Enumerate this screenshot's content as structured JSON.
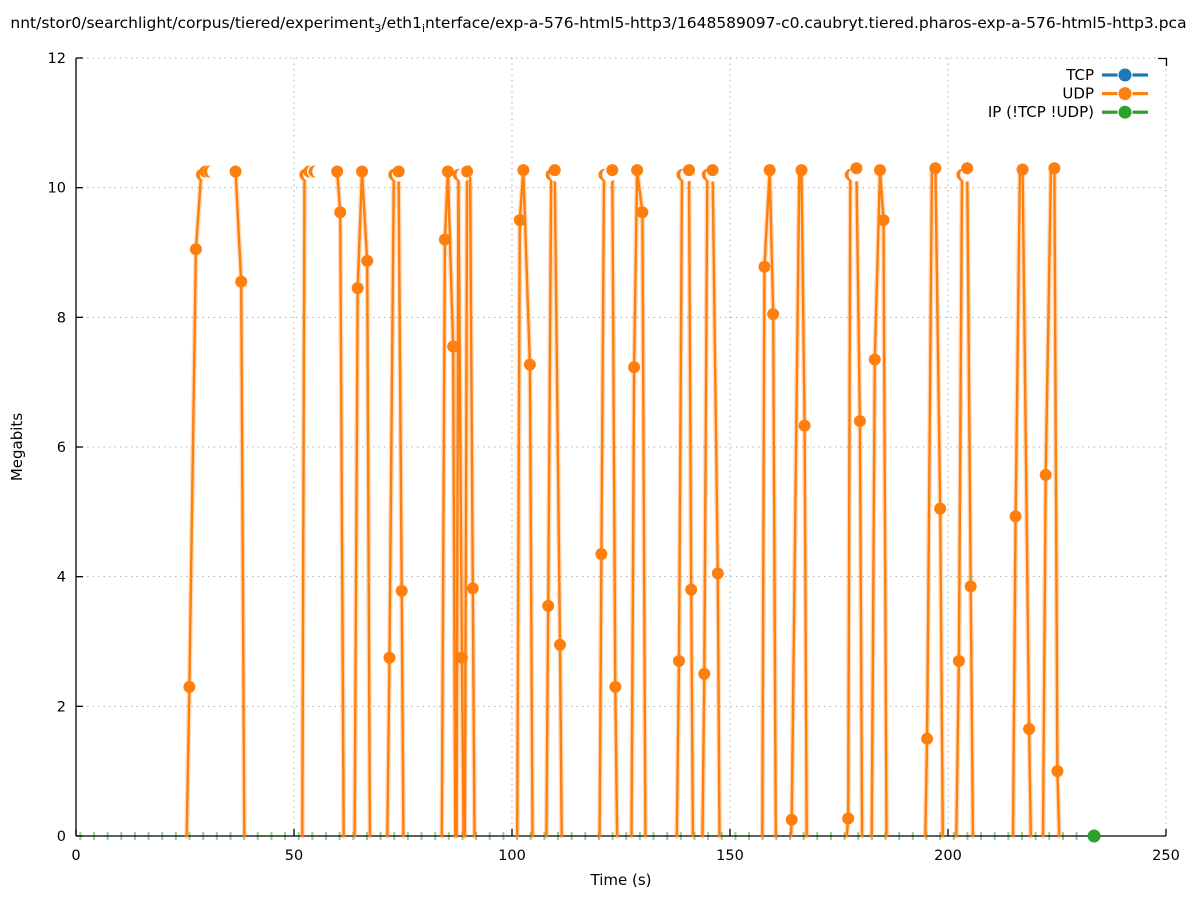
{
  "title": {
    "parts": [
      {
        "text": "nnt/stor0/searchlight/corpus/tiered/experiment"
      },
      {
        "text": "3",
        "sub": true
      },
      {
        "text": "/eth1"
      },
      {
        "text": "i",
        "sub": true
      },
      {
        "text": "nterface/exp-a-576-html5-http3/1648589097-c0.caubryt.tiered.pharos-exp-a-576-html5-http3.pca"
      }
    ]
  },
  "chart_data": {
    "type": "line",
    "xlabel": "Time (s)",
    "ylabel": "Megabits",
    "xlim": [
      0,
      250
    ],
    "ylim": [
      0,
      12
    ],
    "xticks": [
      0,
      50,
      100,
      150,
      200,
      250
    ],
    "yticks": [
      0,
      2,
      4,
      6,
      8,
      10,
      12
    ],
    "grid": true,
    "grid_color": "#b0b0b0",
    "legend_position": "top-right",
    "series": [
      {
        "name": "TCP",
        "color": "#1f77b4",
        "style": "linespoints",
        "points": []
      },
      {
        "name": "UDP",
        "color": "#ff7f0e",
        "style": "linespoints",
        "plateau_value": 10.25,
        "bursts": [
          [
            [
              25.4,
              0
            ],
            [
              26,
              2.3
            ],
            [
              27.5,
              9.05
            ],
            [
              28.7,
              10.2
            ]
          ],
          [
            [
              36.6,
              10.25
            ],
            [
              37.9,
              8.55
            ],
            [
              38.6,
              0
            ]
          ],
          [
            [
              51.9,
              0
            ],
            [
              52.4,
              10.2
            ]
          ],
          [
            [
              59.9,
              10.25
            ],
            [
              60.6,
              9.62
            ],
            [
              61.4,
              0
            ]
          ],
          [
            [
              63.9,
              0
            ],
            [
              64.6,
              8.45
            ],
            [
              65.6,
              10.25
            ],
            [
              66.8,
              8.87
            ],
            [
              67.4,
              0
            ]
          ],
          [
            [
              71.4,
              0
            ],
            [
              71.9,
              2.75
            ],
            [
              72.9,
              10.2
            ]
          ],
          [
            [
              74,
              10.25
            ],
            [
              74.7,
              3.78
            ],
            [
              75.1,
              0
            ]
          ],
          [
            [
              83.9,
              0
            ],
            [
              84.6,
              9.2
            ],
            [
              85.3,
              10.25
            ],
            [
              86.5,
              7.55
            ],
            [
              87,
              0
            ]
          ],
          [
            [
              87.3,
              0
            ],
            [
              87.7,
              10.2
            ],
            [
              88.5,
              2.75
            ],
            [
              88.9,
              0
            ]
          ],
          [
            [
              89.2,
              0
            ],
            [
              89.7,
              10.25
            ],
            [
              90.4,
              10.25
            ],
            [
              91,
              3.82
            ],
            [
              91.4,
              0
            ]
          ],
          [
            [
              101.2,
              0
            ],
            [
              101.8,
              9.5
            ],
            [
              102.6,
              10.27
            ],
            [
              104.1,
              7.27
            ],
            [
              104.7,
              0
            ]
          ],
          [
            [
              107.9,
              0
            ],
            [
              108.3,
              3.55
            ],
            [
              109,
              10.2
            ],
            [
              109.8,
              10.27
            ],
            [
              111,
              2.95
            ],
            [
              111.4,
              0
            ]
          ],
          [
            [
              120.1,
              0
            ],
            [
              120.5,
              4.35
            ],
            [
              121.1,
              10.2
            ]
          ],
          [
            [
              123,
              10.27
            ],
            [
              123.7,
              2.3
            ],
            [
              124.1,
              0
            ]
          ],
          [
            [
              127.4,
              0
            ],
            [
              128,
              7.23
            ],
            [
              128.7,
              10.27
            ],
            [
              129.9,
              9.62
            ],
            [
              130.6,
              0
            ]
          ],
          [
            [
              137.8,
              0
            ],
            [
              138.3,
              2.7
            ],
            [
              139,
              10.2
            ]
          ],
          [
            [
              140.6,
              10.27
            ],
            [
              141.1,
              3.8
            ],
            [
              141.5,
              0
            ]
          ],
          [
            [
              143.7,
              0
            ],
            [
              144.1,
              2.5
            ],
            [
              144.8,
              10.2
            ]
          ],
          [
            [
              146,
              10.27
            ],
            [
              147.2,
              4.05
            ],
            [
              147.6,
              0
            ]
          ],
          [
            [
              157.4,
              0
            ],
            [
              157.9,
              8.78
            ],
            [
              159.1,
              10.27
            ],
            [
              159.9,
              8.05
            ],
            [
              160.5,
              0
            ]
          ],
          [
            [
              164,
              0
            ],
            [
              164.15,
              0.25
            ],
            [
              165.9,
              10.25
            ],
            [
              166.4,
              10.27
            ],
            [
              167.1,
              6.33
            ],
            [
              167.6,
              0
            ]
          ],
          [
            [
              176.8,
              0
            ],
            [
              177.1,
              0.27
            ],
            [
              177.6,
              10.2
            ]
          ],
          [
            [
              179,
              10.3
            ],
            [
              179.8,
              6.4
            ],
            [
              180.3,
              0
            ]
          ],
          [
            [
              182.5,
              0
            ],
            [
              183.2,
              7.35
            ],
            [
              184.4,
              10.27
            ],
            [
              185.2,
              9.5
            ],
            [
              185.9,
              0
            ]
          ],
          [
            [
              194.8,
              0
            ],
            [
              195.2,
              1.5
            ],
            [
              196.3,
              10.25
            ],
            [
              197.1,
              10.3
            ],
            [
              198.2,
              5.05
            ],
            [
              198.8,
              0
            ]
          ],
          [
            [
              201.9,
              0
            ],
            [
              202.5,
              2.7
            ],
            [
              203.2,
              10.2
            ]
          ],
          [
            [
              204.4,
              10.3
            ],
            [
              205.2,
              3.85
            ],
            [
              205.7,
              0
            ]
          ],
          [
            [
              214.9,
              0
            ],
            [
              215.5,
              4.93
            ],
            [
              216.5,
              10.25
            ],
            [
              217.1,
              10.28
            ],
            [
              218.6,
              1.65
            ],
            [
              219,
              0
            ]
          ],
          [
            [
              221.8,
              0
            ],
            [
              222.4,
              5.57
            ],
            [
              223.6,
              10.25
            ],
            [
              224.4,
              10.3
            ],
            [
              225.1,
              1
            ],
            [
              225.5,
              0
            ]
          ]
        ],
        "point_markers": [
          [
            26,
            2.3
          ],
          [
            27.5,
            9.05
          ],
          [
            36.6,
            10.25
          ],
          [
            37.9,
            8.55
          ],
          [
            59.9,
            10.25
          ],
          [
            60.6,
            9.62
          ],
          [
            64.6,
            8.45
          ],
          [
            65.6,
            10.25
          ],
          [
            66.8,
            8.87
          ],
          [
            71.9,
            2.75
          ],
          [
            74,
            10.25
          ],
          [
            74.7,
            3.78
          ],
          [
            84.6,
            9.2
          ],
          [
            85.3,
            10.25
          ],
          [
            86.5,
            7.55
          ],
          [
            88.5,
            2.75
          ],
          [
            89.7,
            10.25
          ],
          [
            91,
            3.82
          ],
          [
            101.8,
            9.5
          ],
          [
            102.6,
            10.27
          ],
          [
            104.1,
            7.27
          ],
          [
            108.3,
            3.55
          ],
          [
            109.8,
            10.27
          ],
          [
            111,
            2.95
          ],
          [
            120.5,
            4.35
          ],
          [
            123,
            10.27
          ],
          [
            123.7,
            2.3
          ],
          [
            128,
            7.23
          ],
          [
            128.7,
            10.27
          ],
          [
            129.9,
            9.62
          ],
          [
            138.3,
            2.7
          ],
          [
            140.6,
            10.27
          ],
          [
            141.1,
            3.8
          ],
          [
            144.1,
            2.5
          ],
          [
            146,
            10.27
          ],
          [
            147.2,
            4.05
          ],
          [
            157.9,
            8.78
          ],
          [
            159.1,
            10.27
          ],
          [
            159.9,
            8.05
          ],
          [
            164.15,
            0.25
          ],
          [
            166.4,
            10.27
          ],
          [
            167.1,
            6.33
          ],
          [
            177.1,
            0.27
          ],
          [
            179,
            10.3
          ],
          [
            179.8,
            6.4
          ],
          [
            183.2,
            7.35
          ],
          [
            184.4,
            10.27
          ],
          [
            185.2,
            9.5
          ],
          [
            195.2,
            1.5
          ],
          [
            197.1,
            10.3
          ],
          [
            198.2,
            5.05
          ],
          [
            202.5,
            2.7
          ],
          [
            204.4,
            10.3
          ],
          [
            205.2,
            3.85
          ],
          [
            215.5,
            4.93
          ],
          [
            217.1,
            10.28
          ],
          [
            218.6,
            1.65
          ],
          [
            222.4,
            5.57
          ],
          [
            224.4,
            10.3
          ],
          [
            225.1,
            1
          ]
        ],
        "partial_markers": [
          [
            28.9,
            10.2
          ],
          [
            29.7,
            10.25
          ],
          [
            30.6,
            10.25
          ],
          [
            52.6,
            10.2
          ],
          [
            53.5,
            10.25
          ],
          [
            54.7,
            10.25
          ],
          [
            73,
            10.2
          ],
          [
            87.8,
            10.2
          ],
          [
            90.4,
            10.25
          ],
          [
            109.1,
            10.2
          ],
          [
            121.2,
            10.2
          ],
          [
            139.1,
            10.2
          ],
          [
            144.9,
            10.2
          ],
          [
            177.7,
            10.2
          ],
          [
            203.3,
            10.2
          ]
        ]
      },
      {
        "name": "IP (!TCP  !UDP)",
        "color": "#2ca02c",
        "style": "linespoints",
        "constant_value": 0,
        "t_start": 0,
        "t_end": 233.5,
        "marker_interval_s": 3.13,
        "final_point": [
          233.5,
          0
        ]
      }
    ]
  }
}
